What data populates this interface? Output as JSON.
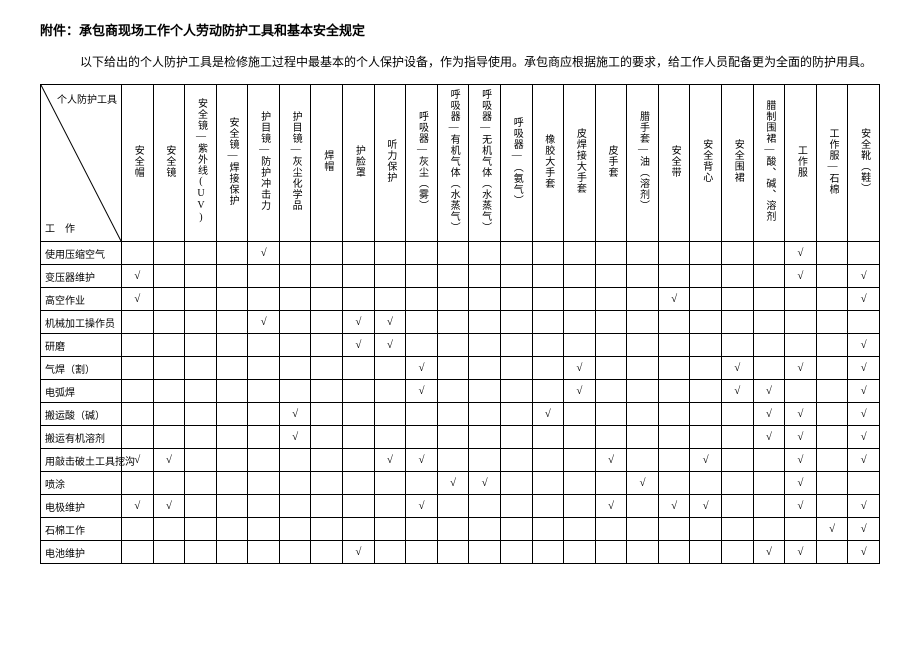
{
  "title": "附件：承包商现场工作个人劳动防护工具和基本安全规定",
  "intro": "以下给出的个人防护工具是检修施工过程中最基本的个人保护设备，作为指导使用。承包商应根据施工的要求，给工作人员配备更为全面的防护用具。",
  "corner_top": "个人防护工具",
  "corner_bottom": "工　作",
  "check": "√",
  "columns": [
    "安全帽",
    "安全镜",
    "安全镜—紫外线(UV)",
    "安全镜—焊接保护",
    "护目镜—防护冲击力",
    "护目镜—灰尘化学品",
    "焊帽",
    "护脸罩",
    "听力保护",
    "呼吸器—灰尘（雾）",
    "呼吸器—有机气体（水蒸气）",
    "呼吸器—无机气体（水蒸气）",
    "呼吸器—（氨气）",
    "橡胶大手套",
    "皮焊接大手套",
    "皮手套",
    "腊手套—油（溶剂）",
    "安全带",
    "安全背心",
    "安全围裙",
    "腊制围裙—酸、碱、溶剂",
    "工作服",
    "工作服—石棉",
    "安全靴（鞋）"
  ],
  "rows": [
    {
      "label": "使用压缩空气",
      "marks": [
        0,
        0,
        0,
        0,
        1,
        0,
        0,
        0,
        0,
        0,
        0,
        0,
        0,
        0,
        0,
        0,
        0,
        0,
        0,
        0,
        0,
        1,
        0,
        0
      ]
    },
    {
      "label": "变压器维护",
      "marks": [
        1,
        0,
        0,
        0,
        0,
        0,
        0,
        0,
        0,
        0,
        0,
        0,
        0,
        0,
        0,
        0,
        0,
        0,
        0,
        0,
        0,
        1,
        0,
        1
      ]
    },
    {
      "label": "高空作业",
      "marks": [
        1,
        0,
        0,
        0,
        0,
        0,
        0,
        0,
        0,
        0,
        0,
        0,
        0,
        0,
        0,
        0,
        0,
        1,
        0,
        0,
        0,
        0,
        0,
        1
      ]
    },
    {
      "label": "机械加工操作员",
      "marks": [
        0,
        0,
        0,
        0,
        1,
        0,
        0,
        1,
        1,
        0,
        0,
        0,
        0,
        0,
        0,
        0,
        0,
        0,
        0,
        0,
        0,
        0,
        0,
        0
      ]
    },
    {
      "label": "研磨",
      "marks": [
        0,
        0,
        0,
        0,
        0,
        0,
        0,
        1,
        1,
        0,
        0,
        0,
        0,
        0,
        0,
        0,
        0,
        0,
        0,
        0,
        0,
        0,
        0,
        1
      ]
    },
    {
      "label": "气焊（割）",
      "marks": [
        0,
        0,
        0,
        0,
        0,
        0,
        0,
        0,
        0,
        1,
        0,
        0,
        0,
        0,
        1,
        0,
        0,
        0,
        0,
        1,
        0,
        1,
        0,
        1
      ]
    },
    {
      "label": "电弧焊",
      "marks": [
        0,
        0,
        0,
        0,
        0,
        0,
        0,
        0,
        0,
        1,
        0,
        0,
        0,
        0,
        1,
        0,
        0,
        0,
        0,
        1,
        1,
        0,
        0,
        1
      ]
    },
    {
      "label": "搬运酸（碱）",
      "marks": [
        0,
        0,
        0,
        0,
        0,
        1,
        0,
        0,
        0,
        0,
        0,
        0,
        0,
        1,
        0,
        0,
        0,
        0,
        0,
        0,
        1,
        1,
        0,
        1
      ]
    },
    {
      "label": "搬运有机溶剂",
      "marks": [
        0,
        0,
        0,
        0,
        0,
        1,
        0,
        0,
        0,
        0,
        0,
        0,
        0,
        0,
        0,
        0,
        0,
        0,
        0,
        0,
        1,
        1,
        0,
        1
      ]
    },
    {
      "label": "用敲击破土工具挖沟",
      "marks": [
        1,
        1,
        0,
        0,
        0,
        0,
        0,
        0,
        1,
        1,
        0,
        0,
        0,
        0,
        0,
        1,
        0,
        0,
        1,
        0,
        0,
        1,
        0,
        1
      ]
    },
    {
      "label": "喷涂",
      "marks": [
        0,
        0,
        0,
        0,
        0,
        0,
        0,
        0,
        0,
        0,
        1,
        1,
        0,
        0,
        0,
        0,
        1,
        0,
        0,
        0,
        0,
        1,
        0,
        0
      ]
    },
    {
      "label": "电极维护",
      "marks": [
        1,
        1,
        0,
        0,
        0,
        0,
        0,
        0,
        0,
        1,
        0,
        0,
        0,
        0,
        0,
        1,
        0,
        1,
        1,
        0,
        0,
        1,
        0,
        1
      ]
    },
    {
      "label": "石棉工作",
      "marks": [
        0,
        0,
        0,
        0,
        0,
        0,
        0,
        0,
        0,
        0,
        0,
        0,
        0,
        0,
        0,
        0,
        0,
        0,
        0,
        0,
        0,
        0,
        1,
        1
      ]
    },
    {
      "label": "电池维护",
      "marks": [
        0,
        0,
        0,
        0,
        0,
        0,
        0,
        1,
        0,
        0,
        0,
        0,
        0,
        0,
        0,
        0,
        0,
        0,
        0,
        0,
        1,
        1,
        0,
        1
      ]
    }
  ],
  "background_color": "#ffffff",
  "border_color": "#000000",
  "text_color": "#000000",
  "font_size_body": 12,
  "font_size_cell": 10
}
